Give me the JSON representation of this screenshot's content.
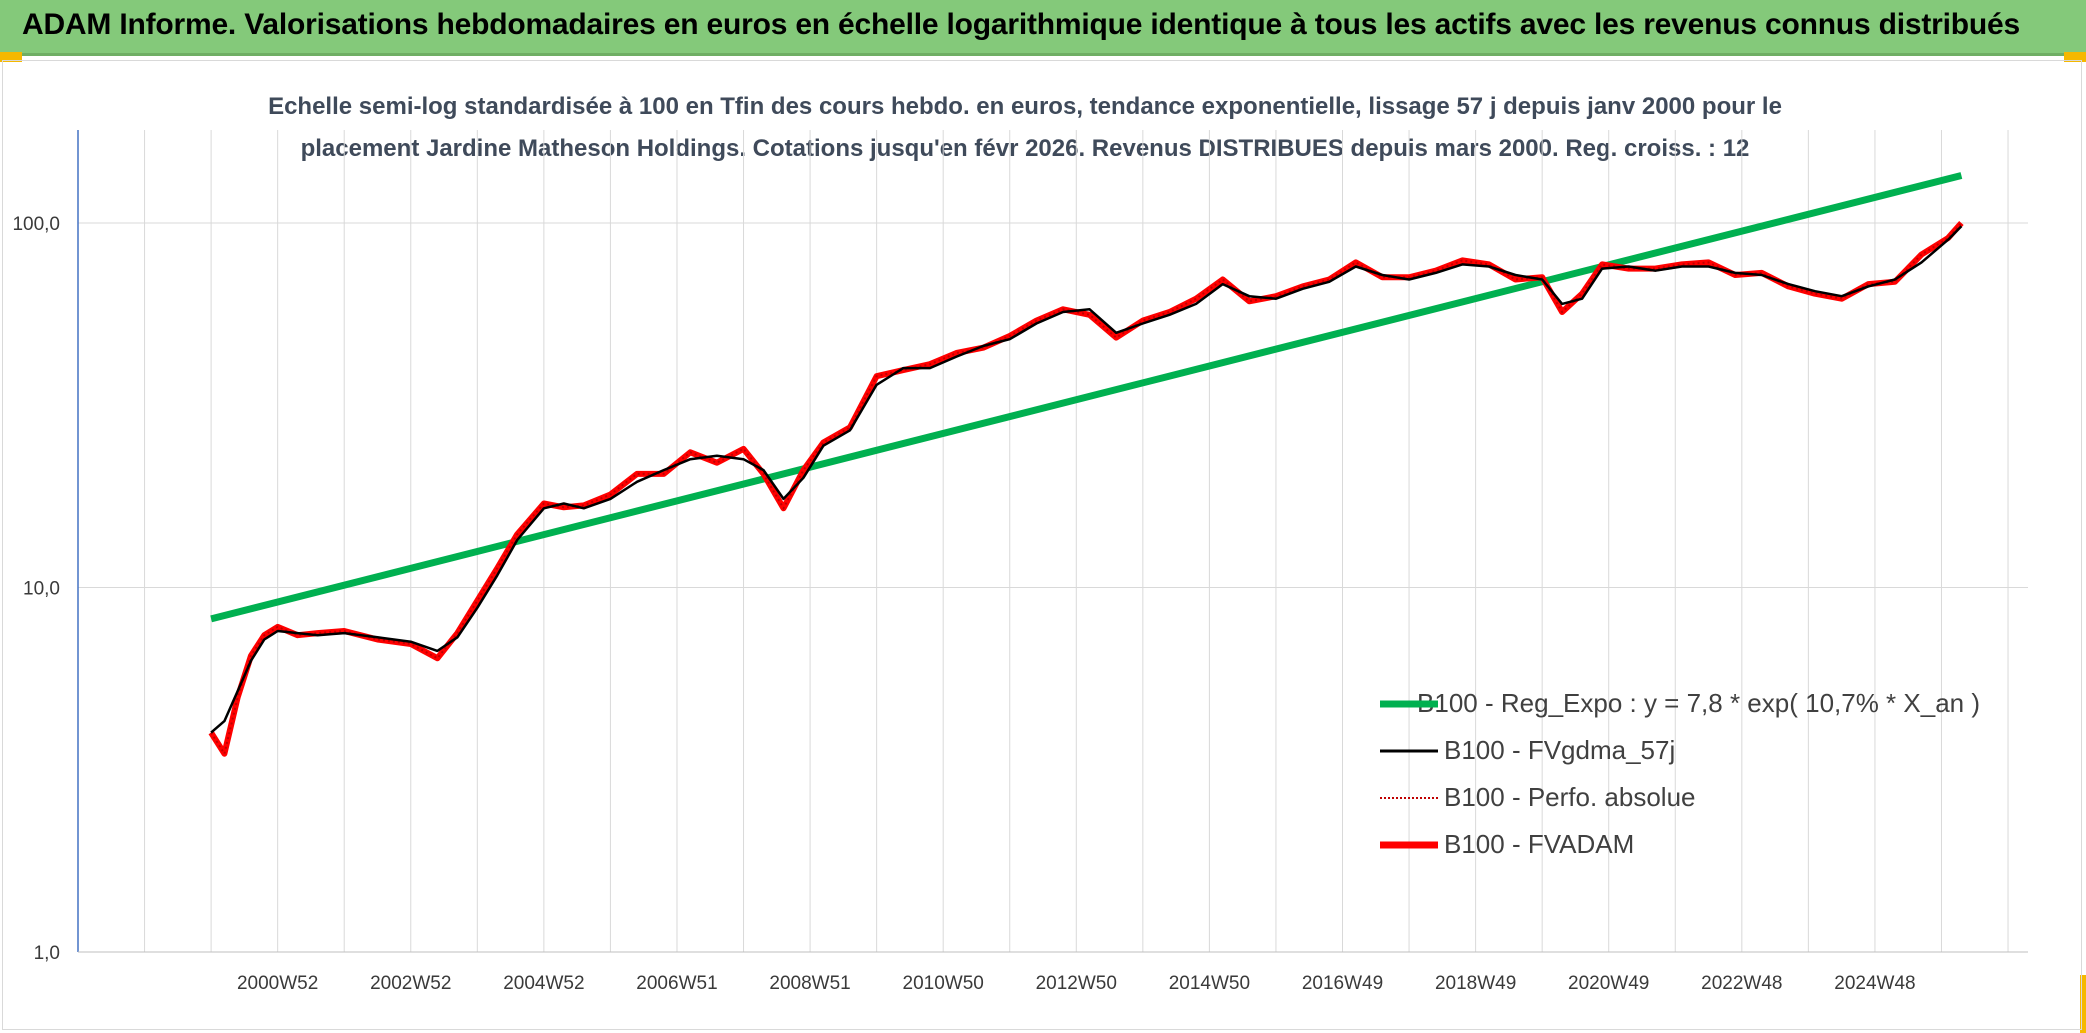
{
  "header": {
    "title": "ADAM Informe. Valorisations hebdomadaires en euros en échelle logarithmique identique à tous les actifs avec les revenus connus distribués"
  },
  "chart_data": {
    "type": "line",
    "subtitle_lines": [
      "Echelle semi-log standardisée à 100 en Tfin des cours hebdo. en euros, tendance exponentielle, lissage 57 j depuis janv 2000 pour le",
      "placement Jardine Matheson Holdings. Cotations jusqu'en févr 2026. Revenus DISTRIBUES depuis mars 2000. Reg. croiss. : 12"
    ],
    "y_scale": "log",
    "ylim": [
      1,
      180
    ],
    "y_ticks": [
      "1,0",
      "10,0",
      "100,0"
    ],
    "x_range": [
      1998.0,
      2027.3
    ],
    "x_ticks": [
      "2000W52",
      "2002W52",
      "2004W52",
      "2006W51",
      "2008W51",
      "2010W50",
      "2012W50",
      "2014W50",
      "2016W49",
      "2018W49",
      "2020W49",
      "2022W48",
      "2024W48"
    ],
    "x_tick_years": [
      2001.0,
      2003.0,
      2005.0,
      2007.0,
      2009.0,
      2011.0,
      2013.0,
      2015.0,
      2017.0,
      2019.0,
      2021.0,
      2023.0,
      2025.0
    ],
    "grid": true,
    "legend_position": "bottom-right",
    "colors": {
      "trend": "#00b050",
      "smooth": "#000000",
      "perfo": "#c00000",
      "fvadam": "#ff0000",
      "axis": "#4472c4",
      "grid": "#d9d9d9"
    },
    "series": [
      {
        "name": "B100 - Reg_Expo : y = 7,8 * exp( 10,7% *  X_an )",
        "key": "trend",
        "x": [
          2000.0,
          2026.3
        ],
        "y": [
          8.2,
          135
        ]
      },
      {
        "name": "B100 - FVgdma_57j",
        "key": "smooth",
        "x": [
          2000.0,
          2000.2,
          2000.4,
          2000.6,
          2000.8,
          2001.0,
          2001.3,
          2001.6,
          2002.0,
          2002.5,
          2003.0,
          2003.4,
          2003.7,
          2004.0,
          2004.3,
          2004.6,
          2005.0,
          2005.3,
          2005.6,
          2006.0,
          2006.4,
          2006.8,
          2007.2,
          2007.6,
          2008.0,
          2008.3,
          2008.6,
          2008.9,
          2009.2,
          2009.6,
          2010.0,
          2010.4,
          2010.8,
          2011.2,
          2011.6,
          2012.0,
          2012.4,
          2012.8,
          2013.2,
          2013.6,
          2014.0,
          2014.4,
          2014.8,
          2015.2,
          2015.6,
          2016.0,
          2016.4,
          2016.8,
          2017.2,
          2017.6,
          2018.0,
          2018.4,
          2018.8,
          2019.2,
          2019.6,
          2020.0,
          2020.3,
          2020.6,
          2020.9,
          2021.3,
          2021.7,
          2022.1,
          2022.5,
          2022.9,
          2023.3,
          2023.7,
          2024.1,
          2024.5,
          2024.9,
          2025.3,
          2025.7,
          2026.1,
          2026.3
        ],
        "y": [
          4.0,
          4.3,
          5.2,
          6.3,
          7.2,
          7.6,
          7.5,
          7.4,
          7.5,
          7.3,
          7.1,
          6.7,
          7.3,
          8.8,
          10.8,
          13.5,
          16.5,
          17.0,
          16.5,
          17.5,
          19.5,
          21.0,
          22.5,
          23.0,
          22.5,
          21.0,
          17.5,
          20.0,
          24.5,
          27.0,
          36.0,
          40.0,
          40.0,
          43.0,
          46.0,
          48.0,
          53.0,
          57.0,
          58.0,
          50.0,
          53.0,
          56.0,
          60.0,
          68.0,
          63.0,
          62.0,
          66.0,
          69.0,
          76.0,
          72.0,
          70.0,
          73.0,
          77.0,
          76.0,
          72.0,
          70.0,
          60.0,
          62.0,
          75.0,
          76.0,
          74.0,
          76.0,
          76.0,
          73.0,
          72.0,
          68.0,
          65.0,
          63.0,
          67.0,
          70.0,
          78.0,
          90.0,
          98.0
        ]
      },
      {
        "name": "B100 - Perfo. absolue",
        "key": "perfo",
        "x": [
          2000.0,
          2000.2,
          2000.4,
          2000.6,
          2000.8,
          2001.0,
          2001.3,
          2001.6,
          2002.0,
          2002.5,
          2003.0,
          2003.4,
          2003.7,
          2004.0,
          2004.3,
          2004.6,
          2005.0,
          2005.3,
          2005.6,
          2006.0,
          2006.4,
          2006.8,
          2007.2,
          2007.6,
          2008.0,
          2008.3,
          2008.6,
          2008.9,
          2009.2,
          2009.6,
          2010.0,
          2010.4,
          2010.8,
          2011.2,
          2011.6,
          2012.0,
          2012.4,
          2012.8,
          2013.2,
          2013.6,
          2014.0,
          2014.4,
          2014.8,
          2015.2,
          2015.6,
          2016.0,
          2016.4,
          2016.8,
          2017.2,
          2017.6,
          2018.0,
          2018.4,
          2018.8,
          2019.2,
          2019.6,
          2020.0,
          2020.3,
          2020.6,
          2020.9,
          2021.3,
          2021.7,
          2022.1,
          2022.5,
          2022.9,
          2023.3,
          2023.7,
          2024.1,
          2024.5,
          2024.9,
          2025.3,
          2025.7,
          2026.1,
          2026.3
        ],
        "y": [
          4.0,
          3.5,
          5.0,
          6.5,
          7.4,
          7.8,
          7.4,
          7.5,
          7.6,
          7.2,
          7.0,
          6.4,
          7.5,
          9.2,
          11.3,
          14.0,
          17.0,
          16.6,
          16.8,
          18.0,
          20.5,
          20.5,
          23.5,
          22.0,
          24.0,
          20.5,
          16.5,
          21.0,
          25.0,
          27.5,
          38.0,
          39.5,
          41.0,
          44.0,
          45.5,
          49.0,
          54.0,
          58.0,
          56.0,
          48.5,
          54.0,
          57.0,
          62.0,
          70.0,
          61.0,
          63.0,
          67.0,
          70.0,
          78.0,
          71.0,
          71.0,
          74.0,
          79.0,
          77.0,
          70.0,
          71.0,
          57.0,
          64.0,
          77.0,
          75.0,
          75.0,
          77.0,
          78.0,
          72.0,
          73.0,
          67.0,
          64.0,
          62.0,
          68.0,
          69.0,
          82.0,
          91.0,
          100.0
        ]
      },
      {
        "name": "B100 - FVADAM",
        "key": "fvadam",
        "x": [
          2000.0,
          2000.2,
          2000.4,
          2000.6,
          2000.8,
          2001.0,
          2001.3,
          2001.6,
          2002.0,
          2002.5,
          2003.0,
          2003.4,
          2003.7,
          2004.0,
          2004.3,
          2004.6,
          2005.0,
          2005.3,
          2005.6,
          2006.0,
          2006.4,
          2006.8,
          2007.2,
          2007.6,
          2008.0,
          2008.3,
          2008.6,
          2008.9,
          2009.2,
          2009.6,
          2010.0,
          2010.4,
          2010.8,
          2011.2,
          2011.6,
          2012.0,
          2012.4,
          2012.8,
          2013.2,
          2013.6,
          2014.0,
          2014.4,
          2014.8,
          2015.2,
          2015.6,
          2016.0,
          2016.4,
          2016.8,
          2017.2,
          2017.6,
          2018.0,
          2018.4,
          2018.8,
          2019.2,
          2019.6,
          2020.0,
          2020.3,
          2020.6,
          2020.9,
          2021.3,
          2021.7,
          2022.1,
          2022.5,
          2022.9,
          2023.3,
          2023.7,
          2024.1,
          2024.5,
          2024.9,
          2025.3,
          2025.7,
          2026.1,
          2026.3
        ],
        "y": [
          4.0,
          3.5,
          5.0,
          6.5,
          7.4,
          7.8,
          7.4,
          7.5,
          7.6,
          7.2,
          7.0,
          6.4,
          7.5,
          9.2,
          11.3,
          14.0,
          17.0,
          16.6,
          16.8,
          18.0,
          20.5,
          20.5,
          23.5,
          22.0,
          24.0,
          20.5,
          16.5,
          21.0,
          25.0,
          27.5,
          38.0,
          39.5,
          41.0,
          44.0,
          45.5,
          49.0,
          54.0,
          58.0,
          56.0,
          48.5,
          54.0,
          57.0,
          62.0,
          70.0,
          61.0,
          63.0,
          67.0,
          70.0,
          78.0,
          71.0,
          71.0,
          74.0,
          79.0,
          77.0,
          70.0,
          71.0,
          57.0,
          64.0,
          77.0,
          75.0,
          75.0,
          77.0,
          78.0,
          72.0,
          73.0,
          67.0,
          64.0,
          62.0,
          68.0,
          69.0,
          82.0,
          91.0,
          100.0
        ]
      }
    ]
  }
}
